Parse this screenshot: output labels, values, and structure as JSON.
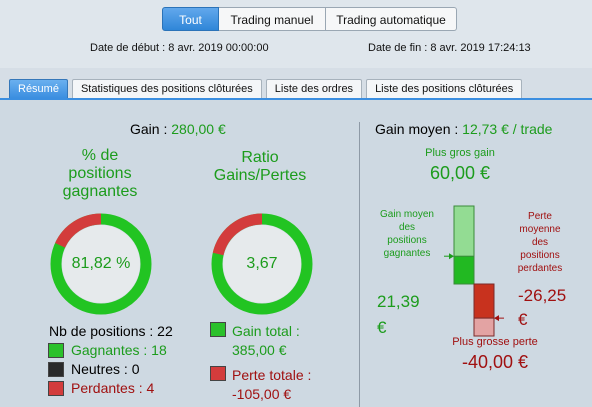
{
  "colors": {
    "gain": "#1c9c1c",
    "loss": "#a01010",
    "accent": "#3b8ee0"
  },
  "segmented": [
    "Tout",
    "Trading manuel",
    "Trading automatique"
  ],
  "dates": {
    "start": "Date de début : 8 avr. 2019 00:00:00",
    "end": "Date de fin : 8 avr. 2019 17:24:13"
  },
  "tabs": [
    "Résumé",
    "Statistiques des positions clôturées",
    "Liste des ordres",
    "Liste des positions clôturées"
  ],
  "summary": {
    "gain_label": "Gain :",
    "gain_value": "280,00 €",
    "win_pct_title": [
      "% de",
      "positions",
      "gagnantes"
    ],
    "win_pct_value": "81,82 %",
    "win_fraction": 0.8182,
    "ratio_title": [
      "Ratio",
      "Gains/Pertes"
    ],
    "ratio_value": "3,67",
    "ratio_fraction": 0.7857,
    "positions_label": "Nb de positions : 22",
    "winners_label": "Gagnantes : 18",
    "neutral_label": "Neutres : 0",
    "losers_label": "Perdantes : 4",
    "total_gain_label": "Gain total :",
    "total_gain_value": "385,00 €",
    "total_loss_label": "Perte totale :",
    "total_loss_value": "-105,00 €"
  },
  "avg": {
    "title": "Gain moyen :",
    "value": "12,73 € / trade",
    "max_gain_label": "Plus gros gain",
    "max_gain_value": "60,00 €",
    "avg_win_label": [
      "Gain moyen",
      "des",
      "positions",
      "gagnantes"
    ],
    "avg_win_value": [
      "21,39",
      "€"
    ],
    "avg_loss_label": [
      "Perte",
      "moyenne",
      "des",
      "positions",
      "perdantes"
    ],
    "avg_loss_value": [
      "-26,25",
      "€"
    ],
    "max_loss_label": "Plus grosse perte",
    "max_loss_value": "-40,00 €",
    "max_gain": 60.0,
    "avg_win": 21.39,
    "avg_loss": -26.25,
    "max_loss": -40.0
  }
}
